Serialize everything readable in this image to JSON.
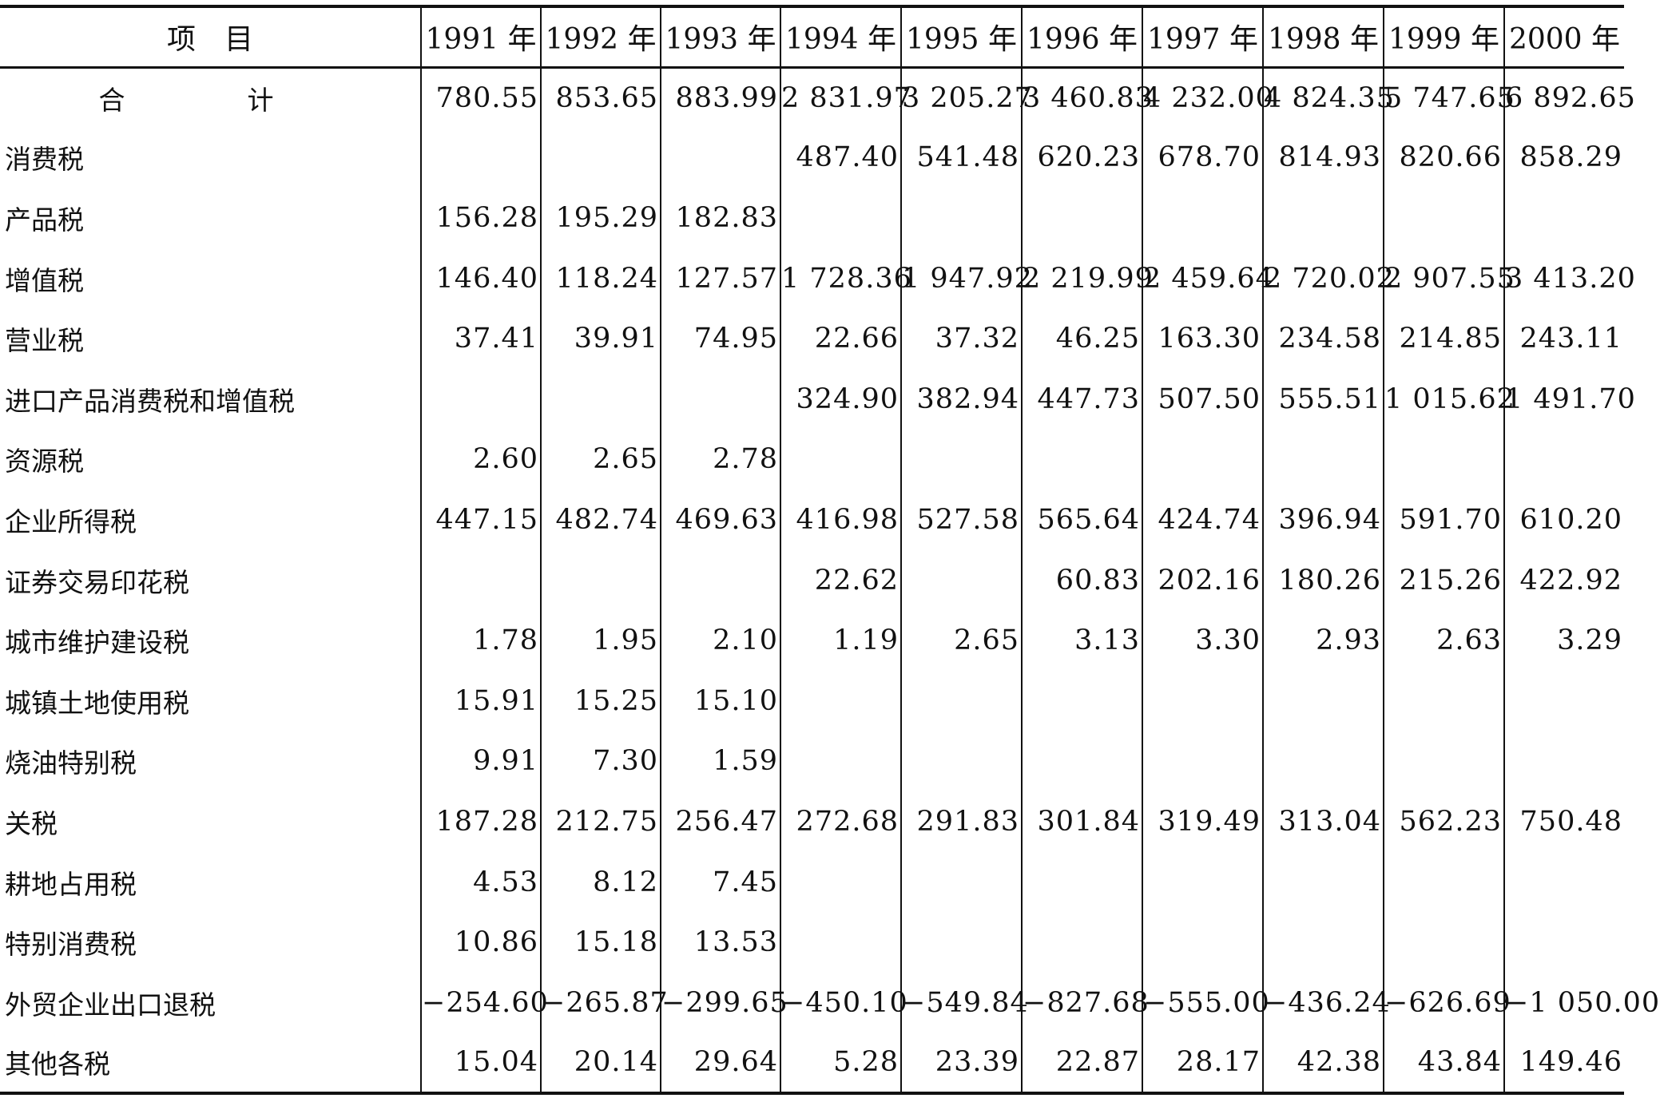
{
  "table": {
    "item_header": "项　目",
    "years": [
      "1991 年",
      "1992 年",
      "1993 年",
      "1994 年",
      "1995 年",
      "1996 年",
      "1997 年",
      "1998 年",
      "1999 年",
      "2000 年"
    ],
    "rows": [
      {
        "label": "合　计",
        "values": [
          "780.55",
          "853.65",
          "883.99",
          "2 831.97",
          "3 205.27",
          "3 460.83",
          "4 232.00",
          "4 824.35",
          "5 747.65",
          "6 892.65"
        ]
      },
      {
        "label": "消费税",
        "values": [
          "",
          "",
          "",
          "487.40",
          "541.48",
          "620.23",
          "678.70",
          "814.93",
          "820.66",
          "858.29"
        ]
      },
      {
        "label": "产品税",
        "values": [
          "156.28",
          "195.29",
          "182.83",
          "",
          "",
          "",
          "",
          "",
          "",
          ""
        ]
      },
      {
        "label": "增值税",
        "values": [
          "146.40",
          "118.24",
          "127.57",
          "1 728.36",
          "1 947.92",
          "2 219.99",
          "2 459.64",
          "2 720.02",
          "2 907.55",
          "3 413.20"
        ]
      },
      {
        "label": "营业税",
        "values": [
          "37.41",
          "39.91",
          "74.95",
          "22.66",
          "37.32",
          "46.25",
          "163.30",
          "234.58",
          "214.85",
          "243.11"
        ]
      },
      {
        "label": "进口产品消费税和增值税",
        "values": [
          "",
          "",
          "",
          "324.90",
          "382.94",
          "447.73",
          "507.50",
          "555.51",
          "1 015.62",
          "1 491.70"
        ]
      },
      {
        "label": "资源税",
        "values": [
          "2.60",
          "2.65",
          "2.78",
          "",
          "",
          "",
          "",
          "",
          "",
          ""
        ]
      },
      {
        "label": "企业所得税",
        "values": [
          "447.15",
          "482.74",
          "469.63",
          "416.98",
          "527.58",
          "565.64",
          "424.74",
          "396.94",
          "591.70",
          "610.20"
        ]
      },
      {
        "label": "证券交易印花税",
        "values": [
          "",
          "",
          "",
          "22.62",
          "",
          "60.83",
          "202.16",
          "180.26",
          "215.26",
          "422.92"
        ]
      },
      {
        "label": "城市维护建设税",
        "values": [
          "1.78",
          "1.95",
          "2.10",
          "1.19",
          "2.65",
          "3.13",
          "3.30",
          "2.93",
          "2.63",
          "3.29"
        ]
      },
      {
        "label": "城镇土地使用税",
        "values": [
          "15.91",
          "15.25",
          "15.10",
          "",
          "",
          "",
          "",
          "",
          "",
          ""
        ]
      },
      {
        "label": "烧油特别税",
        "values": [
          "9.91",
          "7.30",
          "1.59",
          "",
          "",
          "",
          "",
          "",
          "",
          ""
        ]
      },
      {
        "label": "关税",
        "values": [
          "187.28",
          "212.75",
          "256.47",
          "272.68",
          "291.83",
          "301.84",
          "319.49",
          "313.04",
          "562.23",
          "750.48"
        ]
      },
      {
        "label": "耕地占用税",
        "values": [
          "4.53",
          "8.12",
          "7.45",
          "",
          "",
          "",
          "",
          "",
          "",
          ""
        ]
      },
      {
        "label": "特别消费税",
        "values": [
          "10.86",
          "15.18",
          "13.53",
          "",
          "",
          "",
          "",
          "",
          "",
          ""
        ]
      },
      {
        "label": "外贸企业出口退税",
        "values": [
          "−254.60",
          "−265.87",
          "−299.65",
          "−450.10",
          "−549.84",
          "−827.68",
          "−555.00",
          "−436.24",
          "−626.69",
          "−1 050.00"
        ]
      },
      {
        "label": "其他各税",
        "values": [
          "15.04",
          "20.14",
          "29.64",
          "5.28",
          "23.39",
          "22.87",
          "28.17",
          "42.38",
          "43.84",
          "149.46"
        ]
      }
    ]
  }
}
